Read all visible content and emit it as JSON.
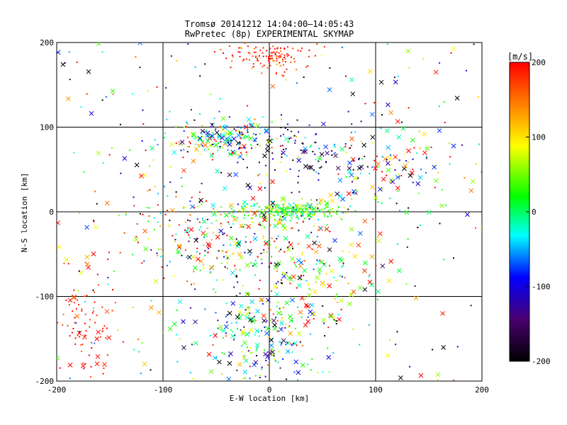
{
  "chart_data": {
    "type": "scatter",
    "title": "Tromsø 20141212 14:04:00–14:05:43",
    "subtitle": "RwPretec (8p) EXPERIMENTAL SKYMAP",
    "xlabel": "E-W location [km]",
    "ylabel": "N-S location [km]",
    "xlim": [
      -200,
      200
    ],
    "ylim": [
      -200,
      200
    ],
    "x_ticks": [
      -200,
      -100,
      0,
      100,
      200
    ],
    "y_ticks": [
      -200,
      -100,
      0,
      100,
      200
    ],
    "x_tick_labels": [
      "-200",
      "-100",
      "0",
      "100",
      "200"
    ],
    "y_tick_labels": [
      "-200",
      "-100",
      "0",
      "100",
      "200"
    ],
    "grid": true,
    "markers": [
      "dot",
      "cross"
    ],
    "colorbar": {
      "label": "[m/s]",
      "min": -200,
      "max": 200,
      "ticks": [
        200,
        100,
        0,
        -100,
        -200
      ],
      "tick_labels": [
        "200",
        "100",
        "0",
        "-100",
        "-200"
      ],
      "colormap": [
        "#000000",
        "#4a0070",
        "#0000ff",
        "#00ffff",
        "#00ff00",
        "#ffff00",
        "#ff0000"
      ],
      "position": "right"
    },
    "clusters": [
      {
        "x": 0,
        "y": 185,
        "sx": 18,
        "sy": 10,
        "n": 130,
        "v": 185,
        "sv": 25,
        "cross_frac": 0.02
      },
      {
        "x": 20,
        "y": 2,
        "sx": 25,
        "sy": 5,
        "n": 320,
        "v": 30,
        "sv": 40,
        "cross_frac": 0.04
      },
      {
        "x": -45,
        "y": 85,
        "sx": 25,
        "sy": 12,
        "n": 180,
        "v": 20,
        "sv": 120,
        "cross_frac": 0.35
      },
      {
        "x": 30,
        "y": 70,
        "sx": 45,
        "sy": 25,
        "n": 140,
        "v": -120,
        "sv": 80,
        "cross_frac": 0.35
      },
      {
        "x": 110,
        "y": 50,
        "sx": 30,
        "sy": 30,
        "n": 90,
        "v": 60,
        "sv": 140,
        "cross_frac": 0.45
      },
      {
        "x": -40,
        "y": -40,
        "sx": 35,
        "sy": 30,
        "n": 220,
        "v": 40,
        "sv": 150,
        "cross_frac": 0.3
      },
      {
        "x": 40,
        "y": -70,
        "sx": 35,
        "sy": 45,
        "n": 180,
        "v": 80,
        "sv": 130,
        "cross_frac": 0.4
      },
      {
        "x": -10,
        "y": -150,
        "sx": 30,
        "sy": 25,
        "n": 180,
        "v": -20,
        "sv": 110,
        "cross_frac": 0.35
      },
      {
        "x": -175,
        "y": -135,
        "sx": 18,
        "sy": 30,
        "n": 90,
        "v": 190,
        "sv": 20,
        "cross_frac": 0.15
      },
      {
        "x": -110,
        "y": -30,
        "sx": 30,
        "sy": 40,
        "n": 70,
        "v": 120,
        "sv": 100,
        "cross_frac": 0.15
      },
      {
        "x": 0,
        "y": 0,
        "sx": 200,
        "sy": 200,
        "n": 300,
        "v": 0,
        "sv": 160,
        "cross_frac": 0.3
      }
    ]
  }
}
